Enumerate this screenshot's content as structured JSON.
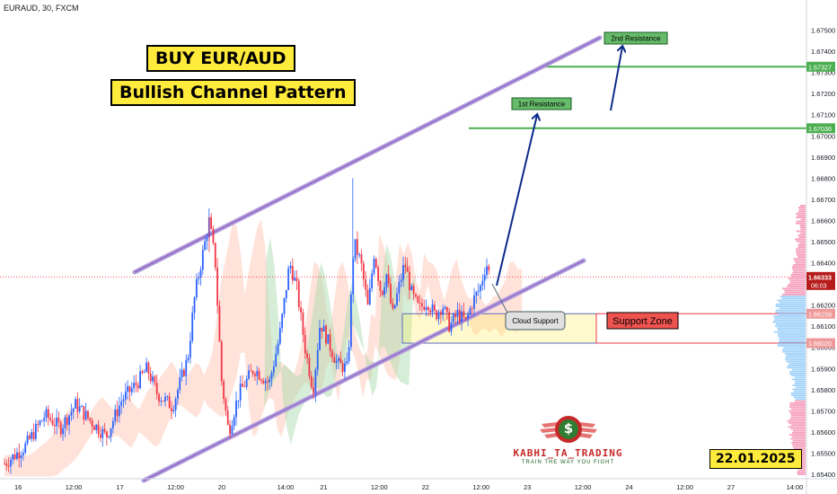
{
  "symbol": "EURAUD, 30, FXCM",
  "title_line1": "BUY EUR/AUD",
  "title_line2": "Bullish Channel Pattern",
  "date_label": "22.01.2025",
  "brand": {
    "name": "KABHI_TA_TRADING",
    "tagline": "TRAIN THE WAY YOU FIGHT",
    "logo_symbol": "$"
  },
  "colors": {
    "up": "#2962ff",
    "down": "#f23645",
    "resistance": "#4caf50",
    "support": "#f23645",
    "channel": "#b39ddb",
    "cloud_green": "#a5d6a7",
    "cloud_red": "#ffccbc",
    "highlight": "#ffeb3b"
  },
  "chart_data": {
    "type": "candlestick",
    "symbol": "EURAUD",
    "timeframe": "30",
    "source": "FXCM",
    "y_axis": {
      "min": 1.654,
      "max": 1.676,
      "ticks": [
        "1.67500",
        "1.67400",
        "1.67300",
        "1.67200",
        "1.67100",
        "1.67000",
        "1.66900",
        "1.66800",
        "1.66700",
        "1.66600",
        "1.66500",
        "1.66400",
        "1.66300",
        "1.66200",
        "1.66100",
        "1.66000",
        "1.65900",
        "1.65800",
        "1.65700",
        "1.65600",
        "1.65500",
        "1.65400"
      ]
    },
    "x_axis": {
      "ticks": [
        {
          "label": "16",
          "pos": 0.0
        },
        {
          "label": "12:00",
          "pos": 0.5
        },
        {
          "label": "17",
          "pos": 1.0
        },
        {
          "label": "12:00",
          "pos": 1.5
        },
        {
          "label": "20",
          "pos": 2.0
        },
        {
          "label": "14:00",
          "pos": 2.58
        },
        {
          "label": "21",
          "pos": 3.0
        },
        {
          "label": "12:00",
          "pos": 3.5
        },
        {
          "label": "22",
          "pos": 4.0
        },
        {
          "label": "12:00",
          "pos": 4.5
        },
        {
          "label": "23",
          "pos": 5.0
        },
        {
          "label": "12:00",
          "pos": 5.5
        },
        {
          "label": "24",
          "pos": 6.0
        },
        {
          "label": "12:00",
          "pos": 6.5
        },
        {
          "label": "27",
          "pos": 7.0
        },
        {
          "label": "14:00",
          "pos": 7.58
        }
      ]
    },
    "price_path": [
      [
        -0.15,
        1.6545
      ],
      [
        0.05,
        1.6553
      ],
      [
        0.25,
        1.6568
      ],
      [
        0.4,
        1.6562
      ],
      [
        0.55,
        1.6573
      ],
      [
        0.7,
        1.6565
      ],
      [
        0.85,
        1.6558
      ],
      [
        1.0,
        1.6575
      ],
      [
        1.15,
        1.6583
      ],
      [
        1.25,
        1.659
      ],
      [
        1.35,
        1.6578
      ],
      [
        1.5,
        1.6572
      ],
      [
        1.65,
        1.6595
      ],
      [
        1.72,
        1.6625
      ],
      [
        1.82,
        1.665
      ],
      [
        1.86,
        1.666
      ],
      [
        1.92,
        1.664
      ],
      [
        1.98,
        1.6585
      ],
      [
        2.05,
        1.656
      ],
      [
        2.15,
        1.6578
      ],
      [
        2.3,
        1.659
      ],
      [
        2.45,
        1.6583
      ],
      [
        2.55,
        1.6605
      ],
      [
        2.65,
        1.664
      ],
      [
        2.72,
        1.6628
      ],
      [
        2.8,
        1.66
      ],
      [
        2.88,
        1.658
      ],
      [
        2.95,
        1.6612
      ],
      [
        3.05,
        1.66
      ],
      [
        3.12,
        1.6592
      ],
      [
        3.22,
        1.659
      ],
      [
        3.28,
        1.665
      ],
      [
        3.35,
        1.664
      ],
      [
        3.42,
        1.6618
      ],
      [
        3.48,
        1.6645
      ],
      [
        3.55,
        1.6625
      ],
      [
        3.6,
        1.6635
      ],
      [
        3.66,
        1.6615
      ],
      [
        3.72,
        1.6628
      ],
      [
        3.78,
        1.664
      ],
      [
        3.85,
        1.6625
      ],
      [
        3.92,
        1.6618
      ],
      [
        4.0,
        1.6622
      ],
      [
        4.08,
        1.6615
      ],
      [
        4.15,
        1.662
      ],
      [
        4.22,
        1.661
      ],
      [
        4.3,
        1.6616
      ],
      [
        4.38,
        1.6612
      ],
      [
        4.45,
        1.6622
      ],
      [
        4.52,
        1.6628
      ],
      [
        4.58,
        1.664
      ],
      [
        4.62,
        1.6633
      ]
    ],
    "ichimoku_cloud": "shown",
    "volume_profile": "shown",
    "channel_lines": "parallel ascending channel",
    "levels": [
      {
        "name": "2nd Resistance",
        "price": 1.67327,
        "label": "1.67327"
      },
      {
        "name": "1st Resistance",
        "price": 1.67036,
        "label": "1.67036"
      },
      {
        "name": "Current",
        "price": 1.66333,
        "label": "1.66333",
        "countdown": "06:03"
      },
      {
        "name": "Support Zone top",
        "price": 1.66159,
        "label": "1.66159"
      },
      {
        "name": "Support Zone bottom",
        "price": 1.6602,
        "label": "1.66020"
      }
    ],
    "annotations": [
      {
        "text": "2nd Resistance"
      },
      {
        "text": "1st Resistance"
      },
      {
        "text": "Cloud Support"
      },
      {
        "text": "Support Zone"
      }
    ]
  }
}
